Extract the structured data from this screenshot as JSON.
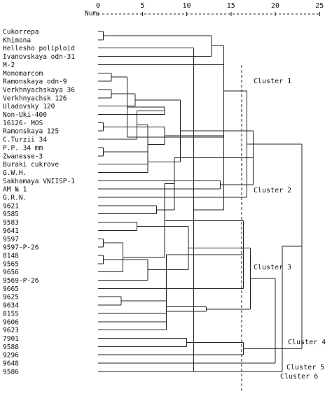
{
  "axis": {
    "label": "Num",
    "ticks": [
      "0",
      "5",
      "10",
      "15",
      "20",
      "25"
    ],
    "tick_values": [
      0,
      5,
      10,
      15,
      20,
      25
    ],
    "range": [
      0,
      25
    ]
  },
  "leaves": [
    "Cukorrepa",
    "Khimona",
    "Hellesho poliploid",
    "Ivanovskaya odn-31",
    "M-2",
    "Monomarcom",
    "Ramonskaya odn-9",
    "Verkhnyachskaya 36",
    "Verkhnyachsk 126",
    "Uladovsky 120",
    "Non-Uki-400",
    "16126- MOS",
    "Ramonskaya 125",
    "C.Turzii 34",
    "P.P. 34 mm",
    "Zwanesse-3",
    "Buraki cukrove",
    "G.W.H.",
    "Sakhamaya VNIISP-1",
    "AM № 1",
    "G.R.N.",
    "9621",
    "9585",
    "9583",
    "9641",
    "9597",
    "9597-P-26",
    "8148",
    "9565",
    "9656",
    "9569-P-26",
    "9665",
    "9625",
    "9634",
    "8155",
    "9606",
    "9623",
    "7901",
    "9588",
    "9296",
    "9648",
    "9586"
  ],
  "merges": [
    {
      "a": 0,
      "b": 1,
      "height": 0.6
    },
    {
      "a": 41,
      "b": 2,
      "height": 10.8
    },
    {
      "a": 42,
      "b": 3,
      "height": 12.8
    },
    {
      "a": 4,
      "b": 43,
      "height": 14.2
    },
    {
      "a": 5,
      "b": 6,
      "height": 1.5
    },
    {
      "a": 7,
      "b": 8,
      "height": 1.5
    },
    {
      "a": 46,
      "b": 45,
      "height": 3.3
    },
    {
      "a": 47,
      "b": 9,
      "height": 4.2
    },
    {
      "a": 48,
      "b": 10,
      "height": 7.5
    },
    {
      "a": 11,
      "b": 12,
      "height": 0.6
    },
    {
      "a": 13,
      "b": 50,
      "height": 4.4
    },
    {
      "a": 14,
      "b": 15,
      "height": 0.6
    },
    {
      "a": 52,
      "b": 16,
      "height": 5.6
    },
    {
      "a": 53,
      "b": 17,
      "height": 5.6
    },
    {
      "a": 51,
      "b": 54,
      "height": 7.5
    },
    {
      "a": 55,
      "b": 49,
      "height": 9.3
    },
    {
      "a": 56,
      "b": 44,
      "height": 14.2
    },
    {
      "a": 18,
      "b": 19,
      "height": 13.8
    },
    {
      "a": 58,
      "b": 20,
      "height": 16.8
    },
    {
      "a": 57,
      "b": 59,
      "height": 17.5
    },
    {
      "a": 21,
      "b": 22,
      "height": 6.6
    },
    {
      "a": 23,
      "b": 24,
      "height": 4.4
    },
    {
      "a": 61,
      "b": 62,
      "height": 8.6
    },
    {
      "a": 25,
      "b": 26,
      "height": 0.6
    },
    {
      "a": 27,
      "b": 28,
      "height": 0.6
    },
    {
      "a": 65,
      "b": 29,
      "height": 2.8
    },
    {
      "a": 66,
      "b": 30,
      "height": 5.6
    },
    {
      "a": 64,
      "b": 67,
      "height": 7.5
    },
    {
      "a": 63,
      "b": 68,
      "height": 10.2
    },
    {
      "a": 69,
      "b": 31,
      "height": 16.4
    },
    {
      "a": 32,
      "b": 33,
      "height": 2.6
    },
    {
      "a": 71,
      "b": 34,
      "height": 7.7
    },
    {
      "a": 72,
      "b": 35,
      "height": 7.7
    },
    {
      "a": 73,
      "b": 36,
      "height": 7.7
    },
    {
      "a": 37,
      "b": 38,
      "height": 10.0
    },
    {
      "a": 74,
      "b": 75,
      "height": 12.2
    },
    {
      "a": 76,
      "b": 39,
      "height": 16.4
    },
    {
      "a": 70,
      "b": 77,
      "height": 17.2
    },
    {
      "a": 60,
      "b": 78,
      "height": 23.0
    },
    {
      "a": 79,
      "b": 40,
      "height": 20.0
    },
    {
      "a": 80,
      "b": 41,
      "height": 20.8
    }
  ],
  "cut_height": 16.2,
  "clusters": [
    {
      "label": "Cluster 1"
    },
    {
      "label": "Cluster 2"
    },
    {
      "label": "Cluster 3"
    },
    {
      "label": "Cluster 4"
    },
    {
      "label": "Cluster 5"
    },
    {
      "label": "Cluster 6"
    }
  ]
}
